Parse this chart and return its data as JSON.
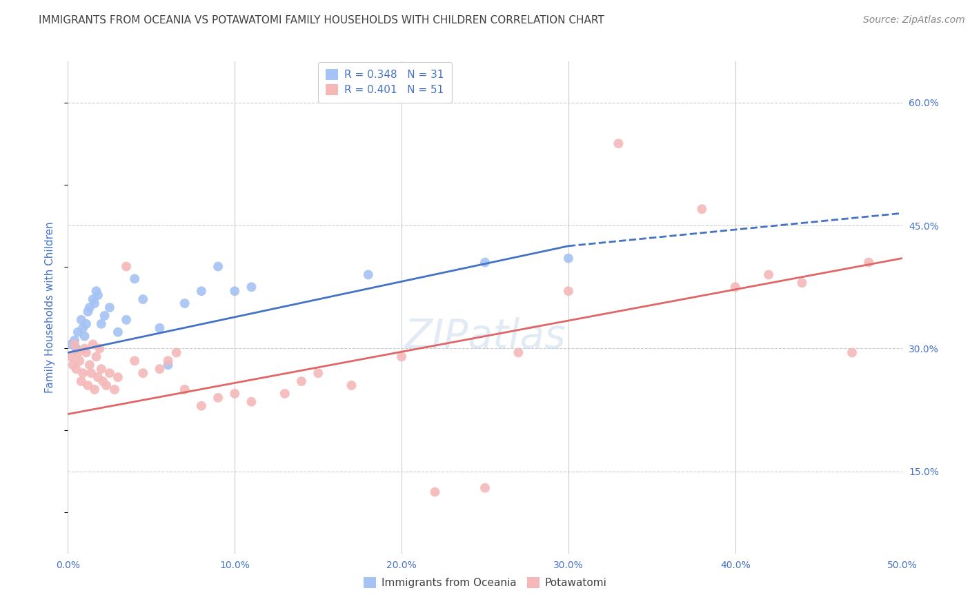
{
  "title": "IMMIGRANTS FROM OCEANIA VS POTAWATOMI FAMILY HOUSEHOLDS WITH CHILDREN CORRELATION CHART",
  "source": "Source: ZipAtlas.com",
  "ylabel": "Family Households with Children",
  "xlim": [
    0.0,
    50.0
  ],
  "ylim": [
    5.0,
    65.0
  ],
  "y_ticks": [
    15.0,
    30.0,
    45.0,
    60.0
  ],
  "x_ticks": [
    0.0,
    10.0,
    20.0,
    30.0,
    40.0,
    50.0
  ],
  "blue_color": "#a4c2f4",
  "pink_color": "#f4b8b8",
  "blue_line_color": "#4472c4",
  "pink_line_color": "#e06666",
  "title_color": "#404040",
  "source_color": "#888888",
  "axis_label_color": "#4472c4",
  "legend_text_color": "#4472c4",
  "grid_color": "#cccccc",
  "background_color": "#ffffff",
  "blue_scatter_x": [
    0.2,
    0.4,
    0.5,
    0.6,
    0.8,
    0.9,
    1.0,
    1.1,
    1.2,
    1.3,
    1.5,
    1.6,
    1.7,
    1.8,
    2.0,
    2.2,
    2.5,
    3.0,
    3.5,
    4.0,
    4.5,
    5.5,
    6.0,
    7.0,
    8.0,
    9.0,
    10.0,
    11.0,
    18.0,
    25.0,
    30.0
  ],
  "blue_scatter_y": [
    30.5,
    31.0,
    30.0,
    32.0,
    33.5,
    32.5,
    31.5,
    33.0,
    34.5,
    35.0,
    36.0,
    35.5,
    37.0,
    36.5,
    33.0,
    34.0,
    35.0,
    32.0,
    33.5,
    38.5,
    36.0,
    32.5,
    28.0,
    35.5,
    37.0,
    40.0,
    37.0,
    37.5,
    39.0,
    40.5,
    41.0
  ],
  "pink_scatter_x": [
    0.2,
    0.3,
    0.4,
    0.5,
    0.6,
    0.7,
    0.8,
    0.9,
    1.0,
    1.1,
    1.2,
    1.3,
    1.4,
    1.5,
    1.6,
    1.7,
    1.8,
    1.9,
    2.0,
    2.1,
    2.3,
    2.5,
    2.8,
    3.0,
    3.5,
    4.0,
    4.5,
    5.5,
    6.0,
    6.5,
    7.0,
    8.0,
    9.0,
    10.0,
    11.0,
    13.0,
    14.0,
    15.0,
    17.0,
    20.0,
    22.0,
    25.0,
    27.0,
    30.0,
    33.0,
    38.0,
    40.0,
    42.0,
    44.0,
    47.0,
    48.0
  ],
  "pink_scatter_y": [
    29.0,
    28.0,
    30.5,
    27.5,
    29.5,
    28.5,
    26.0,
    27.0,
    30.0,
    29.5,
    25.5,
    28.0,
    27.0,
    30.5,
    25.0,
    29.0,
    26.5,
    30.0,
    27.5,
    26.0,
    25.5,
    27.0,
    25.0,
    26.5,
    40.0,
    28.5,
    27.0,
    27.5,
    28.5,
    29.5,
    25.0,
    23.0,
    24.0,
    24.5,
    23.5,
    24.5,
    26.0,
    27.0,
    25.5,
    29.0,
    12.5,
    13.0,
    29.5,
    37.0,
    55.0,
    47.0,
    37.5,
    39.0,
    38.0,
    29.5,
    40.5
  ],
  "blue_line_x0": 0.0,
  "blue_line_x1": 30.0,
  "blue_line_y0": 29.5,
  "blue_line_y1": 42.5,
  "blue_dash_x0": 30.0,
  "blue_dash_x1": 50.0,
  "blue_dash_y0": 42.5,
  "blue_dash_y1": 46.5,
  "pink_line_x0": 0.0,
  "pink_line_x1": 50.0,
  "pink_line_y0": 22.0,
  "pink_line_y1": 41.0,
  "marker_size": 100,
  "line_width": 2.0,
  "title_fontsize": 11,
  "axis_tick_fontsize": 10,
  "ylabel_fontsize": 11,
  "legend_fontsize": 11,
  "source_fontsize": 10
}
